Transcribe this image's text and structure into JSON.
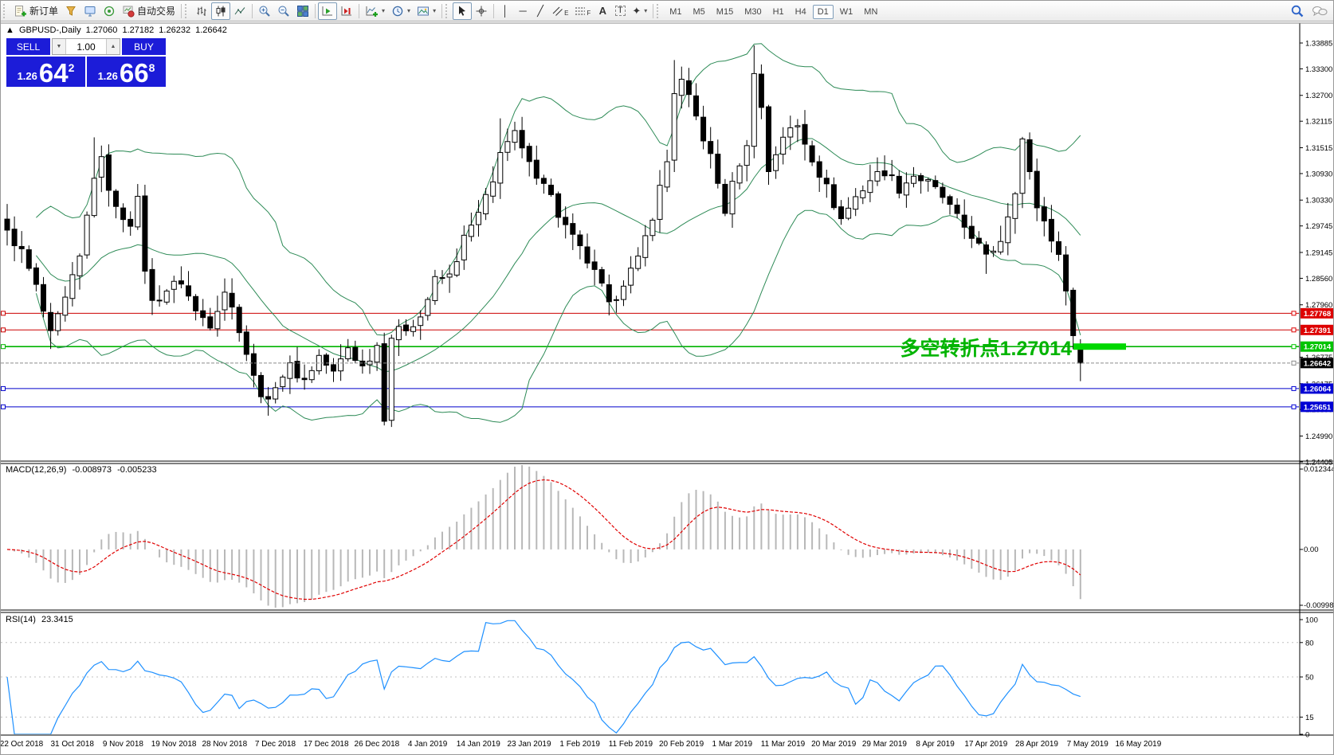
{
  "toolbar": {
    "new_order_label": "新订单",
    "auto_trading_label": "自动交易",
    "timeframes": [
      "M1",
      "M5",
      "M15",
      "M30",
      "H1",
      "H4",
      "D1",
      "W1",
      "MN"
    ],
    "active_timeframe": "D1",
    "glyphs": {
      "vline": "│",
      "hline": "─",
      "trendline": "╱",
      "text_tool": "A",
      "label_tool": "T",
      "channel_sub": "E",
      "fibo_sub": "F",
      "arrows": "✦",
      "caret": "▾",
      "zoom_in": "+",
      "zoom_out": "−"
    }
  },
  "header": {
    "marker": "▲",
    "symbol": "GBPUSD-,Daily",
    "open": "1.27060",
    "high": "1.27182",
    "low": "1.26232",
    "close": "1.26642"
  },
  "quote_panel": {
    "sell_label": "SELL",
    "buy_label": "BUY",
    "volume": "1.00",
    "down_glyph": "▼",
    "up_glyph": "▲",
    "sell_price": {
      "base": "1.26",
      "big": "64",
      "sup": "2"
    },
    "buy_price": {
      "base": "1.26",
      "big": "66",
      "sup": "8"
    }
  },
  "main_chart": {
    "price_ticks": [
      {
        "label": "1.33885",
        "value": 1.33885
      },
      {
        "label": "1.33300",
        "value": 1.333
      },
      {
        "label": "1.32700",
        "value": 1.327
      },
      {
        "label": "1.32115",
        "value": 1.32115
      },
      {
        "label": "1.31515",
        "value": 1.31515
      },
      {
        "label": "1.30930",
        "value": 1.3093
      },
      {
        "label": "1.30330",
        "value": 1.3033
      },
      {
        "label": "1.29745",
        "value": 1.29745
      },
      {
        "label": "1.29145",
        "value": 1.29145
      },
      {
        "label": "1.28560",
        "value": 1.2856
      },
      {
        "label": "1.27960",
        "value": 1.2796
      },
      {
        "label": "1.26775",
        "value": 1.26775
      },
      {
        "label": "1.26175",
        "value": 1.26175
      },
      {
        "label": "1.25590",
        "value": 1.2559
      },
      {
        "label": "1.24990",
        "value": 1.2499
      },
      {
        "label": "1.24405",
        "value": 1.24405
      }
    ],
    "price_tags": [
      {
        "label": "1.27768",
        "value": 1.27768,
        "bg": "#dd0000"
      },
      {
        "label": "1.27391",
        "value": 1.27391,
        "bg": "#dd0000"
      },
      {
        "label": "1.27014",
        "value": 1.27014,
        "bg": "#00c400"
      },
      {
        "label": "1.26642",
        "value": 1.26642,
        "bg": "#000000"
      },
      {
        "label": "1.26064",
        "value": 1.26064,
        "bg": "#0000d4"
      },
      {
        "label": "1.25651",
        "value": 1.25651,
        "bg": "#0000d4"
      }
    ],
    "hlines": [
      {
        "value": 1.27768,
        "color": "#cc0000",
        "w": 1
      },
      {
        "value": 1.27391,
        "color": "#cc0000",
        "w": 1
      },
      {
        "value": 1.27014,
        "color": "#00b400",
        "w": 1.6
      },
      {
        "value": 1.26064,
        "color": "#0000cc",
        "w": 1
      },
      {
        "value": 1.25651,
        "color": "#0000cc",
        "w": 1
      }
    ],
    "bid_line": {
      "value": 1.26642,
      "color": "#8a8a8a"
    },
    "highlight_bar": {
      "value": 1.27014,
      "color": "#00d800"
    },
    "annotation": {
      "text": "多空转折点1.27014",
      "color": "#00b400"
    },
    "bollinger_color": "#2e8b57",
    "candle_colors": {
      "up": "#ffffff",
      "down": "#000000",
      "outline": "#000000"
    }
  },
  "macd": {
    "name": "MACD(12,26,9)",
    "value1": "-0.008973",
    "value2": "-0.005233",
    "axis": {
      "top": "0.012344",
      "zero": "0.00",
      "bottom": "-0.009989"
    },
    "histogram_color": "#b8b8b8",
    "signal_color": "#e00000"
  },
  "rsi": {
    "name": "RSI(14)",
    "value": "23.3415",
    "line_color": "#1e90ff",
    "axis_labels": [
      {
        "label": "100",
        "value": 100
      },
      {
        "label": "80",
        "value": 80
      },
      {
        "label": "50",
        "value": 50
      },
      {
        "label": "15",
        "value": 15
      },
      {
        "label": "0",
        "value": 0
      }
    ],
    "dashed_levels": [
      80,
      50,
      15
    ]
  },
  "time_axis": {
    "labels": [
      "22 Oct 2018",
      "31 Oct 2018",
      "9 Nov 2018",
      "19 Nov 2018",
      "28 Nov 2018",
      "7 Dec 2018",
      "17 Dec 2018",
      "26 Dec 2018",
      "4 Jan 2019",
      "14 Jan 2019",
      "23 Jan 2019",
      "1 Feb 2019",
      "11 Feb 2019",
      "20 Feb 2019",
      "1 Mar 2019",
      "11 Mar 2019",
      "20 Mar 2019",
      "29 Mar 2019",
      "8 Apr 2019",
      "17 Apr 2019",
      "28 Apr 2019",
      "7 May 2019",
      "16 May 2019"
    ]
  },
  "chart_data": {
    "type": "candlestick",
    "symbol": "GBPUSD",
    "timeframe": "Daily",
    "x_range_dates": [
      "22 Oct 2018",
      "16 May 2019"
    ],
    "y_range": [
      1.24405,
      1.33885
    ],
    "bars": 149,
    "close_anchor_points": [
      [
        0,
        1.2965
      ],
      [
        2,
        1.2915
      ],
      [
        4,
        1.2835
      ],
      [
        6,
        1.2725
      ],
      [
        8,
        1.2805
      ],
      [
        10,
        1.29
      ],
      [
        12,
        1.309
      ],
      [
        13,
        1.312
      ],
      [
        15,
        1.301
      ],
      [
        17,
        1.2985
      ],
      [
        18,
        1.303
      ],
      [
        19,
        1.288
      ],
      [
        20,
        1.28
      ],
      [
        22,
        1.283
      ],
      [
        24,
        1.285
      ],
      [
        26,
        1.278
      ],
      [
        28,
        1.2755
      ],
      [
        30,
        1.283
      ],
      [
        32,
        1.2745
      ],
      [
        34,
        1.263
      ],
      [
        36,
        1.257
      ],
      [
        37,
        1.262
      ],
      [
        39,
        1.2655
      ],
      [
        41,
        1.2625
      ],
      [
        43,
        1.268
      ],
      [
        45,
        1.264
      ],
      [
        47,
        1.27
      ],
      [
        49,
        1.2655
      ],
      [
        51,
        1.2705
      ],
      [
        52,
        1.2545
      ],
      [
        53,
        1.2725
      ],
      [
        55,
        1.2745
      ],
      [
        57,
        1.277
      ],
      [
        59,
        1.285
      ],
      [
        61,
        1.286
      ],
      [
        63,
        1.2945
      ],
      [
        65,
        1.3
      ],
      [
        67,
        1.307
      ],
      [
        68,
        1.315
      ],
      [
        70,
        1.318
      ],
      [
        72,
        1.311
      ],
      [
        74,
        1.308
      ],
      [
        76,
        1.3
      ],
      [
        78,
        1.2945
      ],
      [
        80,
        1.2895
      ],
      [
        82,
        1.2835
      ],
      [
        83,
        1.279
      ],
      [
        85,
        1.285
      ],
      [
        87,
        1.2895
      ],
      [
        89,
        1.3
      ],
      [
        91,
        1.312
      ],
      [
        92,
        1.328
      ],
      [
        93,
        1.33
      ],
      [
        95,
        1.322
      ],
      [
        97,
        1.313
      ],
      [
        99,
        1.301
      ],
      [
        101,
        1.312
      ],
      [
        102,
        1.315
      ],
      [
        103,
        1.333
      ],
      [
        104,
        1.324
      ],
      [
        105,
        1.31
      ],
      [
        107,
        1.318
      ],
      [
        109,
        1.32
      ],
      [
        111,
        1.313
      ],
      [
        113,
        1.306
      ],
      [
        115,
        1.299
      ],
      [
        117,
        1.304
      ],
      [
        119,
        1.308
      ],
      [
        121,
        1.31
      ],
      [
        123,
        1.306
      ],
      [
        125,
        1.309
      ],
      [
        127,
        1.307
      ],
      [
        129,
        1.304
      ],
      [
        131,
        1.299
      ],
      [
        133,
        1.2955
      ],
      [
        135,
        1.29
      ],
      [
        137,
        1.2945
      ],
      [
        139,
        1.306
      ],
      [
        140,
        1.317
      ],
      [
        141,
        1.309
      ],
      [
        142,
        1.302
      ],
      [
        143,
        1.2985
      ],
      [
        144,
        1.295
      ],
      [
        145,
        1.29
      ],
      [
        146,
        1.284
      ],
      [
        147,
        1.2725
      ],
      [
        148,
        1.26642
      ]
    ],
    "wick_extremes": [
      {
        "i": 6,
        "low": 1.2696
      },
      {
        "i": 12,
        "high": 1.3175
      },
      {
        "i": 36,
        "low": 1.2545
      },
      {
        "i": 52,
        "low": 1.2523
      },
      {
        "i": 68,
        "high": 1.3218
      },
      {
        "i": 83,
        "low": 1.2772
      },
      {
        "i": 92,
        "high": 1.335
      },
      {
        "i": 103,
        "high": 1.3383
      },
      {
        "i": 115,
        "low": 1.2977
      },
      {
        "i": 135,
        "low": 1.2866
      },
      {
        "i": 140,
        "high": 1.3176
      }
    ],
    "last_bar_ohlc": {
      "open": 1.2706,
      "high": 1.27182,
      "low": 1.26232,
      "close": 1.26642
    },
    "indicators": [
      {
        "name": "Bollinger Bands",
        "period": 20,
        "deviation": 2
      },
      {
        "name": "MACD",
        "fast": 12,
        "slow": 26,
        "signal": 9,
        "current": [
          -0.008973,
          -0.005233
        ]
      },
      {
        "name": "RSI",
        "period": 14,
        "current": 23.3415
      }
    ]
  }
}
